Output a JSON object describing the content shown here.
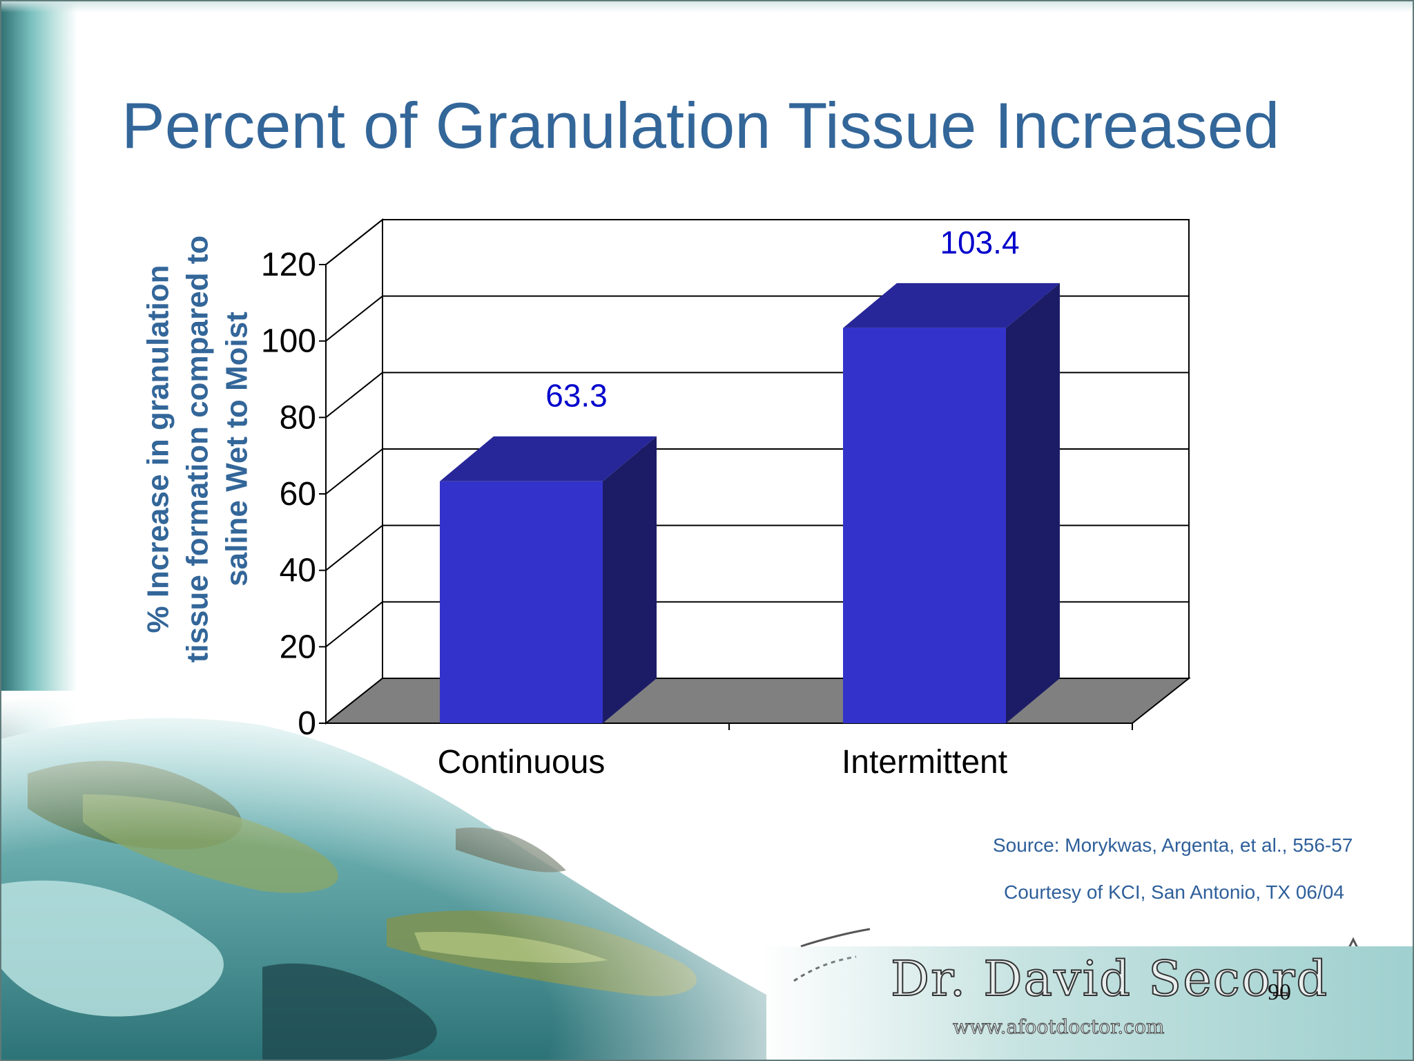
{
  "slide": {
    "title": "Percent of Granulation Tissue Increased",
    "source": "Source: Morykwas, Argenta, et al., 556-57",
    "courtesy": "Courtesy of KCI, San Antonio, TX 06/04",
    "page_number": "90",
    "signature": "Dr. David Secord",
    "website": "www.afootdoctor.com"
  },
  "colors": {
    "title": "#336699",
    "bar_front": "#3333CC",
    "bar_top": "#272799",
    "bar_side": "#1C1C66",
    "floor": "#808080",
    "data_label": "#0000CC"
  },
  "icons": [
    "dolphin-background-image",
    "signature-logo"
  ],
  "chart_data": {
    "type": "bar",
    "categories": [
      "Continuous",
      "Intermittent"
    ],
    "values": [
      63.3,
      103.4
    ],
    "data_labels": [
      "63.3",
      "103.4"
    ],
    "title": "",
    "xlabel": "",
    "ylabel_lines": [
      "% Increase in granulation",
      "tissue formation compared to",
      "saline Wet to Moist"
    ],
    "ylim": [
      0,
      120
    ],
    "yticks": [
      "0",
      "20",
      "40",
      "60",
      "80",
      "100",
      "120"
    ],
    "grid": true,
    "style": "3d"
  }
}
